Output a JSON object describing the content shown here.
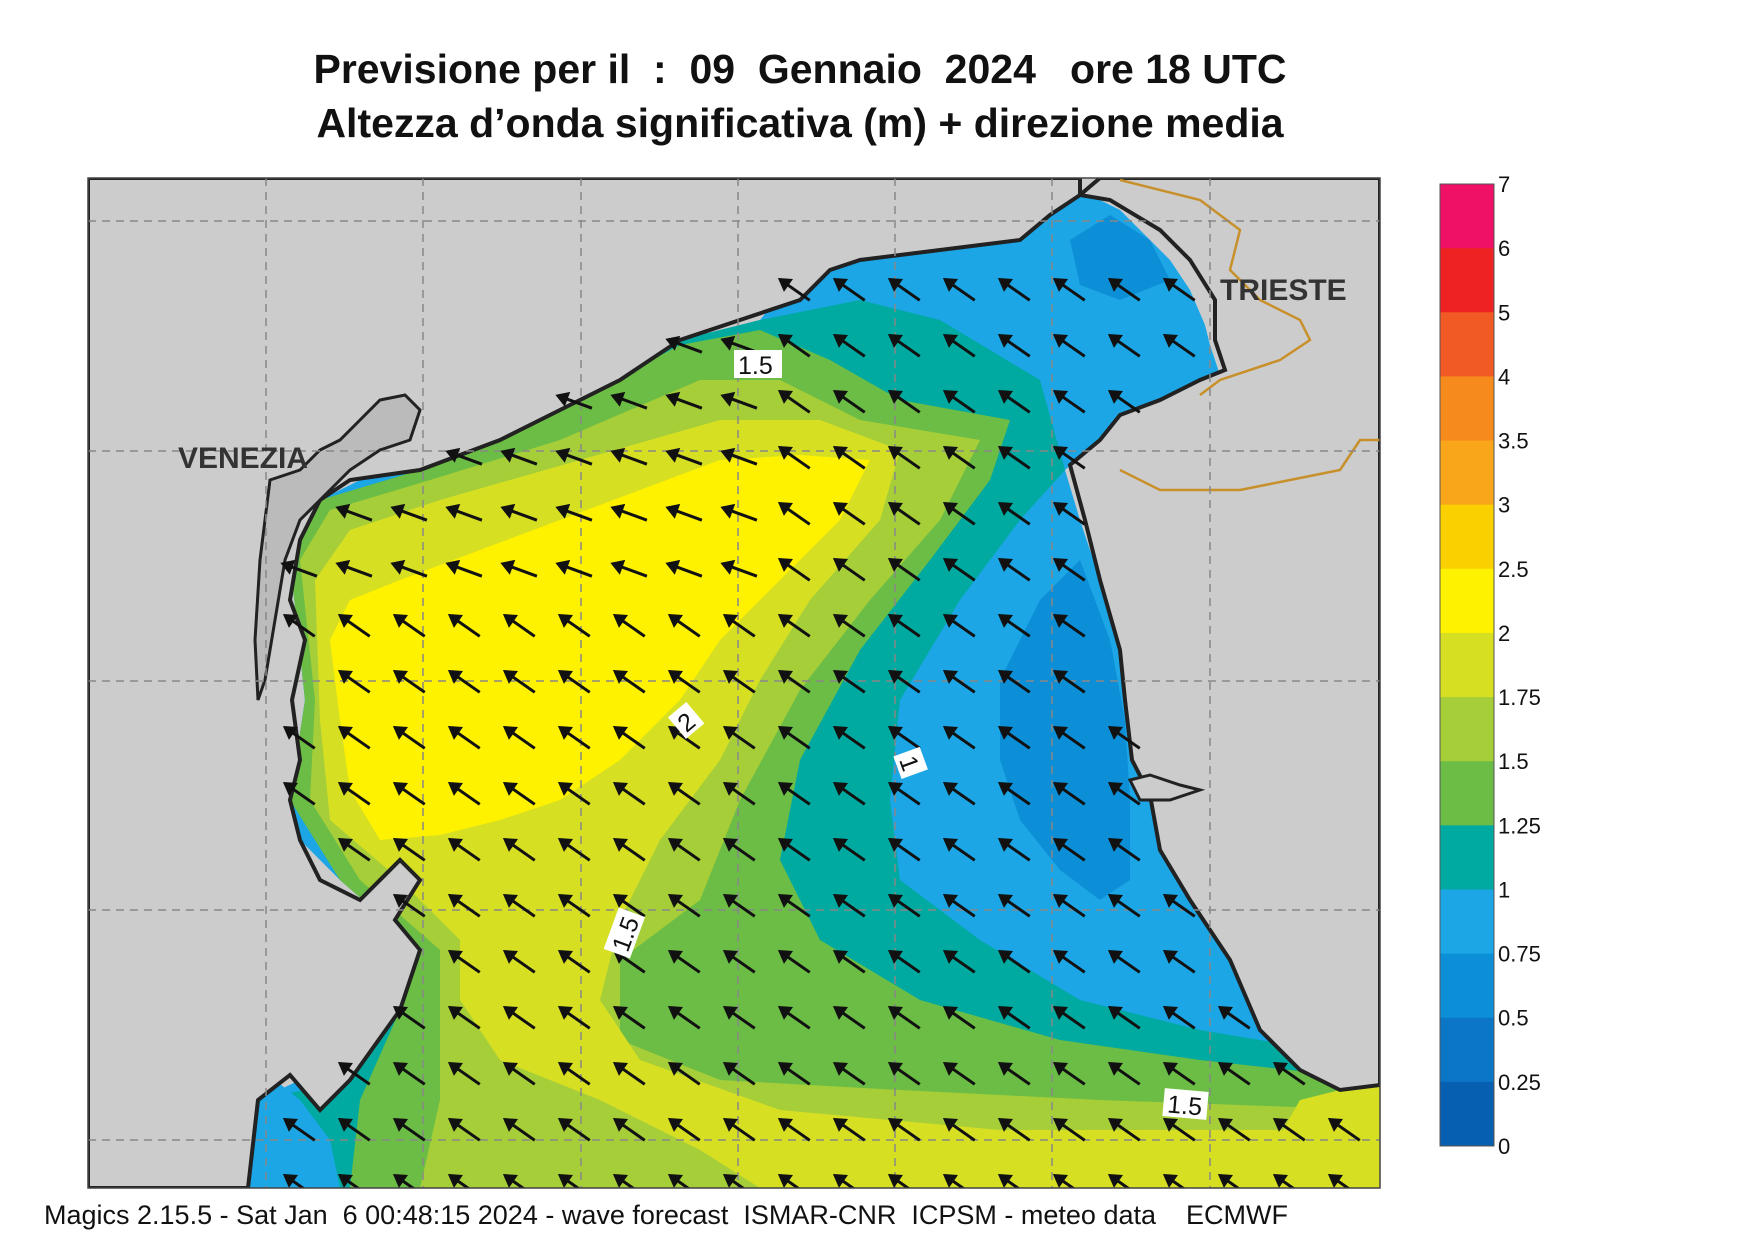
{
  "title": {
    "line1": "Previsione per il  :  09  Gennaio  2024   ore 18 UTC",
    "line2": "Altezza d’onda significativa (m) + direzione media"
  },
  "places": {
    "venezia": "VENEZIA",
    "trieste": "TRIESTE"
  },
  "contour_labels": [
    "1.5",
    "2",
    "1",
    "1.5",
    "1.5"
  ],
  "legend": {
    "labels": [
      "7",
      "6",
      "5",
      "4",
      "3.5",
      "3",
      "2.5",
      "2",
      "1.75",
      "1.5",
      "1.25",
      "1",
      "0.75",
      "0.5",
      "0.25",
      "0"
    ],
    "colors": [
      "#ee1166",
      "#ee2222",
      "#f15a24",
      "#f78a1d",
      "#f9a61b",
      "#fbd000",
      "#fff200",
      "#d7df23",
      "#a6ce39",
      "#6cbd45",
      "#00aaa0",
      "#1ca6e6",
      "#0d8fd8",
      "#0b76c5",
      "#065fb0"
    ]
  },
  "footer": "Magics 2.15.5 - Sat Jan  6 00:48:15 2024 - wave forecast  ISMAR-CNR  ICPSM - meteo data    ECMWF",
  "colors": {
    "land": "#cccccc",
    "coast": "#222222",
    "border": "#c8902a",
    "grid": "#888888"
  }
}
